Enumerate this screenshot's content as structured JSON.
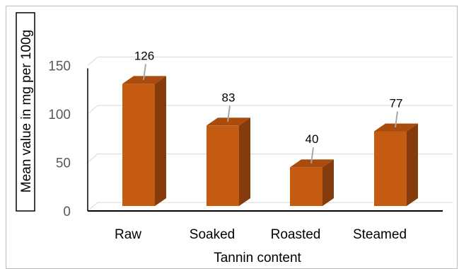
{
  "chart_data": {
    "type": "bar",
    "style": "3d-column",
    "categories": [
      "Raw",
      "Soaked",
      "Roasted",
      "Steamed"
    ],
    "values": [
      126,
      83,
      40,
      77
    ],
    "data_labels": [
      "126",
      "83",
      "40",
      "77"
    ],
    "xlabel": "Tannin content",
    "ylabel": "Mean value in mg per 100g",
    "ylim": [
      0,
      150
    ],
    "yticks": [
      "0",
      "50",
      "100",
      "150"
    ],
    "grid": true,
    "legend": "none",
    "colors": {
      "bar_front": "#c55a11",
      "bar_side": "#843c0c",
      "bar_top": "#a94c0d",
      "gridline": "#d9d9d9",
      "axis": "#000000",
      "leader_line": "#a6a6a6"
    }
  }
}
